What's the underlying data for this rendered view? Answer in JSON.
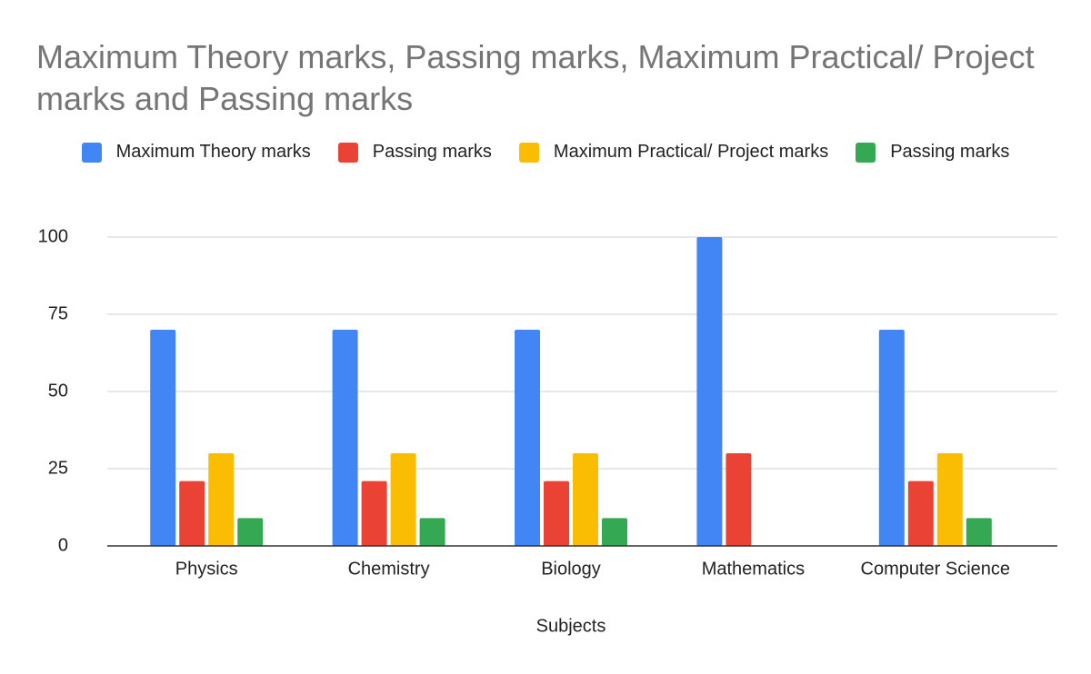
{
  "chart_data": {
    "type": "bar",
    "title": "Maximum Theory marks, Passing marks, Maximum Practical/ Project marks and Passing marks",
    "x_label": "Subjects",
    "categories": [
      "Physics",
      "Chemistry",
      "Biology",
      "Mathematics",
      "Computer Science"
    ],
    "series": [
      {
        "name": "Maximum Theory marks",
        "color": "#4285f4",
        "values": [
          70,
          70,
          70,
          100,
          70
        ]
      },
      {
        "name": "Passing marks",
        "color": "#ea4335",
        "values": [
          21,
          21,
          21,
          30,
          21
        ]
      },
      {
        "name": "Maximum Practical/ Project marks",
        "color": "#fbbc04",
        "values": [
          30,
          30,
          30,
          null,
          30
        ]
      },
      {
        "name": "Passing marks",
        "color": "#34a853",
        "values": [
          9,
          9,
          9,
          null,
          9
        ]
      }
    ],
    "ylim": [
      0,
      100
    ],
    "yticks": [
      0,
      25,
      50,
      75,
      100
    ],
    "grid": true
  }
}
